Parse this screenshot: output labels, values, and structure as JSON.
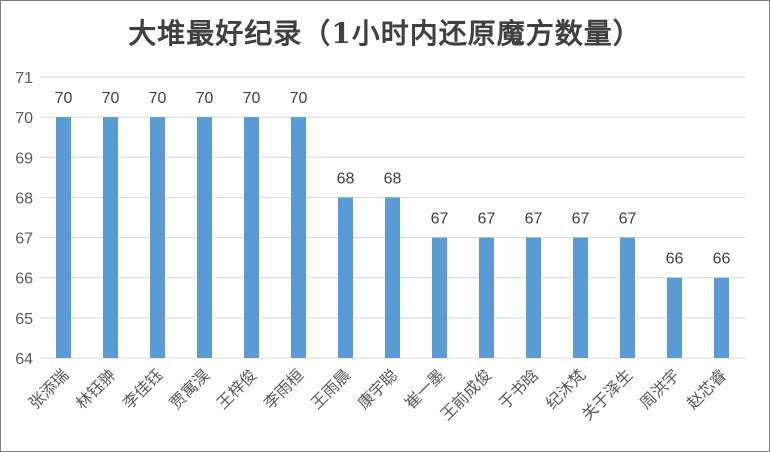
{
  "chart_data": {
    "type": "bar",
    "title": "大堆最好纪录（1小时内还原魔方数量）",
    "xlabel": "",
    "ylabel": "",
    "categories": [
      "张添瑞",
      "林钰翀",
      "李佳钰",
      "贾寓淏",
      "王梓俊",
      "李雨桓",
      "王雨晨",
      "康宇聪",
      "崔一墨",
      "王前成俊",
      "于书晗",
      "纪沐梵",
      "关于泽生",
      "周洪宇",
      "赵芯睿"
    ],
    "series": [
      {
        "values": [
          70,
          70,
          70,
          70,
          70,
          70,
          68,
          68,
          67,
          67,
          67,
          67,
          67,
          66,
          66
        ]
      }
    ],
    "ylim": [
      64,
      71
    ],
    "yticks": [
      64,
      65,
      66,
      67,
      68,
      69,
      70,
      71
    ],
    "grid": true,
    "legend": "none",
    "bar_color": "#5b9bd5",
    "data_labels": true
  }
}
